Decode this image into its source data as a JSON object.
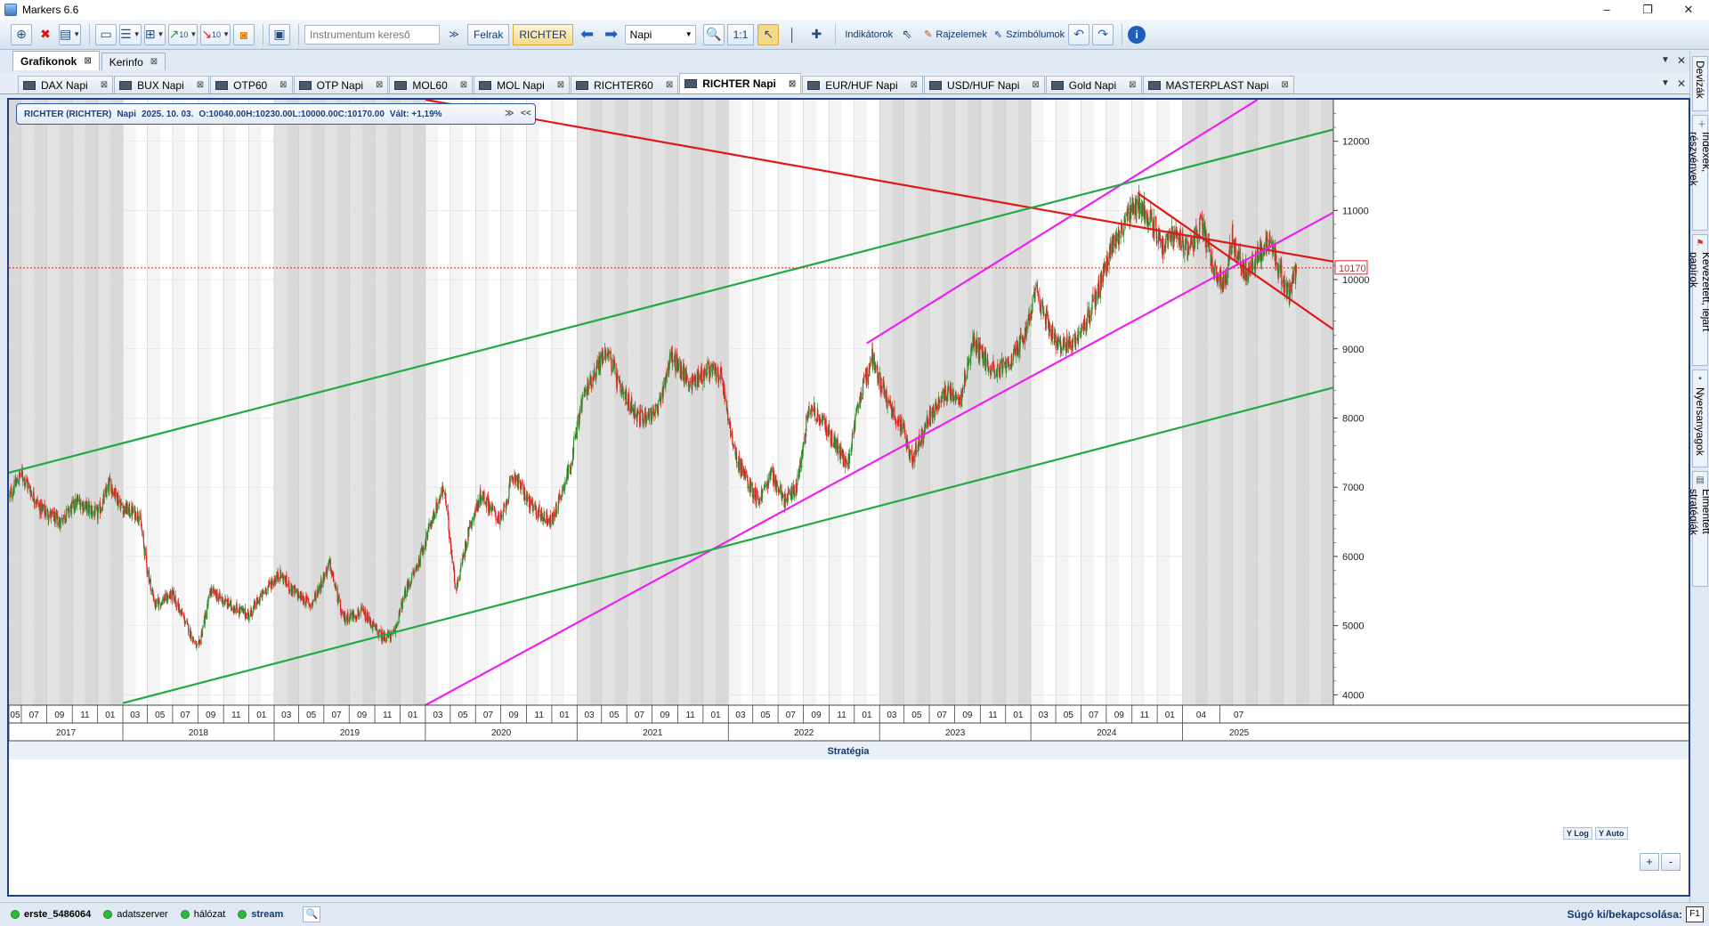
{
  "window": {
    "title": "Markers 6.6",
    "controls": [
      "–",
      "❐",
      "✕"
    ]
  },
  "toolbar": {
    "search_placeholder": "Instrumentum kereső",
    "felrak_label": "Felrak",
    "symbol_label": "RICHTER",
    "period_value": "Napi",
    "ratio_label": "1:1",
    "indicators_label": "Indikátorok",
    "drawings_label": "Rajzelemek",
    "symbols_label": "Szimbólumok",
    "count_a": "10",
    "count_b": "10"
  },
  "main_tabs": [
    {
      "label": "Grafikonok",
      "active": true
    },
    {
      "label": "Kerinfo",
      "active": false
    }
  ],
  "chart_tabs": [
    {
      "label": "DAX Napi",
      "active": false
    },
    {
      "label": "BUX Napi",
      "active": false
    },
    {
      "label": "OTP60",
      "active": false
    },
    {
      "label": "OTP Napi",
      "active": false
    },
    {
      "label": "MOL60",
      "active": false
    },
    {
      "label": "MOL Napi",
      "active": false
    },
    {
      "label": "RICHTER60",
      "active": false
    },
    {
      "label": "RICHTER Napi",
      "active": true
    },
    {
      "label": "EUR/HUF Napi",
      "active": false
    },
    {
      "label": "USD/HUF Napi",
      "active": false
    },
    {
      "label": "Gold Napi",
      "active": false
    },
    {
      "label": "MASTERPLAST Napi",
      "active": false
    }
  ],
  "right_panel": [
    "Devizák",
    "Indexek, részvények",
    "Kevezetett, lejárt papírok",
    "Nyersanyagok",
    "Elmentett stratégiák"
  ],
  "chart_info": {
    "name": "RICHTER (RICHTER)",
    "period": "Napi",
    "date": "2025. 10. 03.",
    "open": "O:10040.00",
    "high": "H:10230.00",
    "low": "L:10000.00",
    "close": "C:10170.00",
    "change": "Vált: +1,19%"
  },
  "chart_buttons": {
    "ylog": "Y Log",
    "yauto": "Y Auto",
    "zoom_in": "+",
    "zoom_out": "-"
  },
  "strategy_label": "Stratégia",
  "colors": {
    "up_candle": "#2e8b2e",
    "down_candle": "#e02020",
    "red_line": "#e01818",
    "magenta_line": "#ee22ee",
    "green_line": "#22a844",
    "shade": "#d9d9d9",
    "last_price": "#e02020"
  },
  "chart_data": {
    "type": "candlestick",
    "symbol": "RICHTER",
    "period": "Napi",
    "last_price": 10170,
    "ylim": [
      3850,
      12600
    ],
    "y_ticks": [
      4000,
      5000,
      6000,
      7000,
      8000,
      9000,
      10000,
      11000,
      12000
    ],
    "x_years": [
      "2017",
      "2018",
      "2019",
      "2020",
      "2021",
      "2022",
      "2023",
      "2024",
      "2025"
    ],
    "x_tick_labels": [
      "05",
      "07",
      "09",
      "11",
      "01",
      "03",
      "05",
      "07",
      "09",
      "11",
      "01",
      "03",
      "05",
      "07",
      "09",
      "11",
      "01",
      "03",
      "05",
      "07",
      "09",
      "11",
      "01",
      "03",
      "05",
      "07",
      "09",
      "11",
      "01",
      "03",
      "05",
      "07",
      "09",
      "11",
      "01",
      "03",
      "05",
      "07",
      "09",
      "11",
      "01",
      "03",
      "05",
      "07",
      "09",
      "11",
      "01",
      "04",
      "07"
    ],
    "price_anchors": [
      [
        "2017-04-01",
        6850
      ],
      [
        "2017-05-01",
        7200
      ],
      [
        "2017-06-15",
        6700
      ],
      [
        "2017-08-01",
        6500
      ],
      [
        "2017-09-15",
        6800
      ],
      [
        "2017-11-01",
        6600
      ],
      [
        "2017-12-01",
        7050
      ],
      [
        "2018-01-01",
        6700
      ],
      [
        "2018-02-10",
        6600
      ],
      [
        "2018-03-01",
        5800
      ],
      [
        "2018-03-20",
        5300
      ],
      [
        "2018-05-01",
        5450
      ],
      [
        "2018-06-01",
        5050
      ],
      [
        "2018-07-01",
        4650
      ],
      [
        "2018-08-01",
        5500
      ],
      [
        "2018-09-15",
        5300
      ],
      [
        "2018-11-01",
        5150
      ],
      [
        "2018-12-15",
        5550
      ],
      [
        "2019-01-15",
        5750
      ],
      [
        "2019-02-15",
        5500
      ],
      [
        "2019-04-01",
        5300
      ],
      [
        "2019-05-15",
        5900
      ],
      [
        "2019-06-15",
        5100
      ],
      [
        "2019-08-01",
        5200
      ],
      [
        "2019-09-15",
        4850
      ],
      [
        "2019-10-15",
        4850
      ],
      [
        "2019-11-15",
        5500
      ],
      [
        "2019-12-15",
        5900
      ],
      [
        "2020-01-15",
        6500
      ],
      [
        "2020-02-15",
        7000
      ],
      [
        "2020-03-15",
        5500
      ],
      [
        "2020-04-15",
        6400
      ],
      [
        "2020-05-15",
        6900
      ],
      [
        "2020-07-01",
        6500
      ],
      [
        "2020-08-01",
        7200
      ],
      [
        "2020-09-15",
        6700
      ],
      [
        "2020-11-01",
        6500
      ],
      [
        "2020-12-15",
        7300
      ],
      [
        "2021-01-15",
        8300
      ],
      [
        "2021-02-15",
        8700
      ],
      [
        "2021-03-15",
        9000
      ],
      [
        "2021-04-15",
        8400
      ],
      [
        "2021-06-01",
        8000
      ],
      [
        "2021-07-15",
        8100
      ],
      [
        "2021-08-15",
        8900
      ],
      [
        "2021-10-01",
        8500
      ],
      [
        "2021-11-15",
        8700
      ],
      [
        "2021-12-15",
        8600
      ],
      [
        "2022-01-15",
        7500
      ],
      [
        "2022-02-15",
        7100
      ],
      [
        "2022-03-15",
        6800
      ],
      [
        "2022-04-15",
        7200
      ],
      [
        "2022-05-15",
        6800
      ],
      [
        "2022-06-15",
        7000
      ],
      [
        "2022-07-15",
        8200
      ],
      [
        "2022-09-01",
        7800
      ],
      [
        "2022-10-15",
        7300
      ],
      [
        "2022-11-15",
        8300
      ],
      [
        "2022-12-15",
        8900
      ],
      [
        "2023-01-15",
        8300
      ],
      [
        "2023-03-01",
        7800
      ],
      [
        "2023-03-20",
        7400
      ],
      [
        "2023-05-01",
        8000
      ],
      [
        "2023-06-15",
        8400
      ],
      [
        "2023-07-15",
        8300
      ],
      [
        "2023-08-15",
        9100
      ],
      [
        "2023-10-01",
        8700
      ],
      [
        "2023-11-15",
        8800
      ],
      [
        "2023-12-15",
        9200
      ],
      [
        "2024-01-15",
        9800
      ],
      [
        "2024-02-15",
        9300
      ],
      [
        "2024-03-15",
        9000
      ],
      [
        "2024-04-15",
        9100
      ],
      [
        "2024-05-15",
        9400
      ],
      [
        "2024-06-15",
        9900
      ],
      [
        "2024-07-15",
        10500
      ],
      [
        "2024-08-15",
        10800
      ],
      [
        "2024-09-15",
        11100
      ],
      [
        "2024-10-15",
        10900
      ],
      [
        "2024-11-15",
        10500
      ],
      [
        "2024-12-15",
        10700
      ],
      [
        "2025-01-15",
        10400
      ],
      [
        "2025-02-15",
        10800
      ],
      [
        "2025-03-15",
        10200
      ],
      [
        "2025-04-10",
        9900
      ],
      [
        "2025-05-01",
        10600
      ],
      [
        "2025-06-01",
        10100
      ],
      [
        "2025-07-01",
        10300
      ],
      [
        "2025-08-01",
        10600
      ],
      [
        "2025-08-20",
        10200
      ],
      [
        "2025-09-15",
        9800
      ],
      [
        "2025-10-03",
        10170
      ]
    ],
    "trendlines": [
      {
        "color": "red",
        "points": [
          [
            "2020-01-01",
            12600
          ],
          [
            "2025-12-31",
            10260
          ]
        ]
      },
      {
        "color": "red",
        "points": [
          [
            "2024-09-15",
            11250
          ],
          [
            "2025-12-31",
            9280
          ]
        ]
      },
      {
        "color": "magenta",
        "points": [
          [
            "2020-01-01",
            3850
          ],
          [
            "2025-12-31",
            10970
          ]
        ]
      },
      {
        "color": "magenta",
        "points": [
          [
            "2022-12-01",
            9080
          ],
          [
            "2025-07-01",
            12600
          ]
        ]
      },
      {
        "color": "green",
        "points": [
          [
            "2017-04-01",
            7210
          ],
          [
            "2025-12-31",
            12170
          ]
        ]
      },
      {
        "color": "green",
        "points": [
          [
            "2018-01-01",
            3880
          ],
          [
            "2025-12-31",
            8440
          ]
        ]
      }
    ]
  }
}
